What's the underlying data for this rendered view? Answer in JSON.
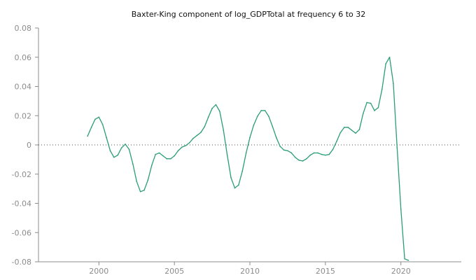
{
  "chart_data": {
    "type": "line",
    "title": "Baxter-King component of log_GDPTotal at frequency 6 to 32",
    "xlabel": "",
    "ylabel": "",
    "xlim": [
      1996,
      2024
    ],
    "ylim": [
      -0.08,
      0.08
    ],
    "xticks": [
      2000,
      2005,
      2010,
      2015,
      2020
    ],
    "yticks": [
      -0.08,
      -0.06,
      -0.04,
      -0.02,
      0,
      0.02,
      0.04,
      0.06,
      0.08
    ],
    "ytick_labels": [
      "-0.08",
      "-0.06",
      "-0.04",
      "-0.02",
      "0",
      "0.02",
      "0.04",
      "0.06",
      "0.08"
    ],
    "grid": false,
    "zero_line": true,
    "colors": {
      "series": "#2a9d7a",
      "axis": "#8c8c8c"
    },
    "series": [
      {
        "x": [
          1999.25,
          1999.5,
          1999.75,
          2000.0,
          2000.25,
          2000.5,
          2000.75,
          2001.0,
          2001.25,
          2001.5,
          2001.75,
          2002.0,
          2002.25,
          2002.5,
          2002.75,
          2003.0,
          2003.25,
          2003.5,
          2003.75,
          2004.0,
          2004.25,
          2004.5,
          2004.75,
          2005.0,
          2005.25,
          2005.5,
          2005.75,
          2006.0,
          2006.25,
          2006.5,
          2006.75,
          2007.0,
          2007.25,
          2007.5,
          2007.75,
          2008.0,
          2008.25,
          2008.5,
          2008.75,
          2009.0,
          2009.25,
          2009.5,
          2009.75,
          2010.0,
          2010.25,
          2010.5,
          2010.75,
          2011.0,
          2011.25,
          2011.5,
          2011.75,
          2012.0,
          2012.25,
          2012.5,
          2012.75,
          2013.0,
          2013.25,
          2013.5,
          2013.75,
          2014.0,
          2014.25,
          2014.5,
          2014.75,
          2015.0,
          2015.25,
          2015.5,
          2015.75,
          2016.0,
          2016.25,
          2016.5,
          2016.75,
          2017.0,
          2017.25,
          2017.5,
          2017.75,
          2018.0,
          2018.25,
          2018.5,
          2018.75,
          2019.0,
          2019.25,
          2019.5,
          2019.75,
          2020.0,
          2020.25,
          2020.5
        ],
        "y": [
          0.006,
          0.012,
          0.0175,
          0.019,
          0.014,
          0.005,
          -0.004,
          -0.0085,
          -0.007,
          -0.002,
          0.0005,
          -0.003,
          -0.013,
          -0.025,
          -0.032,
          -0.031,
          -0.024,
          -0.014,
          -0.0065,
          -0.0055,
          -0.0075,
          -0.0095,
          -0.0095,
          -0.0075,
          -0.004,
          -0.0015,
          -0.0005,
          0.0015,
          0.0045,
          0.0065,
          0.0085,
          0.0125,
          0.019,
          0.025,
          0.0275,
          0.023,
          0.01,
          -0.007,
          -0.0225,
          -0.0295,
          -0.0275,
          -0.018,
          -0.0055,
          0.005,
          0.0135,
          0.0195,
          0.0235,
          0.0235,
          0.0195,
          0.0125,
          0.005,
          -0.001,
          -0.0035,
          -0.004,
          -0.0055,
          -0.0085,
          -0.0105,
          -0.011,
          -0.0095,
          -0.007,
          -0.0055,
          -0.0055,
          -0.0065,
          -0.007,
          -0.0065,
          -0.003,
          0.0025,
          0.0085,
          0.012,
          0.012,
          0.01,
          0.008,
          0.0105,
          0.0215,
          0.029,
          0.0285,
          0.0235,
          0.0255,
          0.038,
          0.0555,
          0.06,
          0.042,
          -0.002,
          -0.044,
          -0.078,
          -0.079
        ]
      }
    ]
  }
}
